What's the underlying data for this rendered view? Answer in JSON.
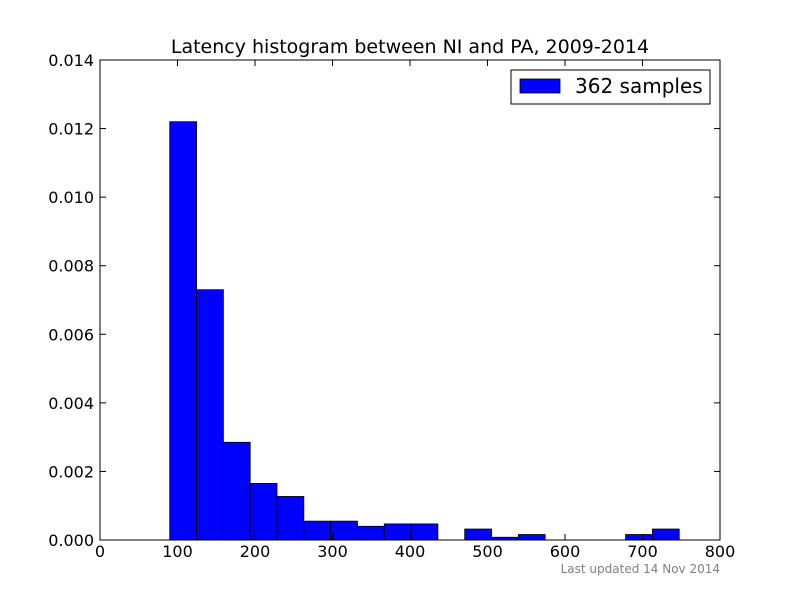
{
  "chart_data": {
    "type": "bar",
    "title": "Latency histogram between NI and PA, 2009-2014",
    "xlabel": "",
    "ylabel": "",
    "xlim": [
      0,
      800
    ],
    "ylim": [
      0,
      0.014
    ],
    "x_ticks": [
      "0",
      "100",
      "200",
      "300",
      "400",
      "500",
      "600",
      "700",
      "800"
    ],
    "y_ticks": [
      "0.000",
      "0.002",
      "0.004",
      "0.006",
      "0.008",
      "0.010",
      "0.012",
      "0.014"
    ],
    "bin_edges": [
      90,
      124.6,
      159.2,
      193.8,
      228.4,
      263,
      297.6,
      332.2,
      366.8,
      401.4,
      436,
      470.6,
      505.2,
      539.8,
      574.4,
      609,
      643.6,
      678.2,
      712.8,
      747.4
    ],
    "series": [
      {
        "name": "362 samples",
        "values": [
          0.0122,
          0.0073,
          0.00285,
          0.00165,
          0.00127,
          0.00055,
          0.00055,
          0.0004,
          0.00047,
          0.00047,
          0.0,
          0.00032,
          8e-05,
          0.00016,
          0.0,
          0.0,
          0.0,
          0.00016,
          0.00032
        ]
      }
    ],
    "bar_color": "#0000ff",
    "grid": false,
    "legend_position": "top-right"
  },
  "footer": {
    "text": "Last updated 14 Nov 2014"
  }
}
